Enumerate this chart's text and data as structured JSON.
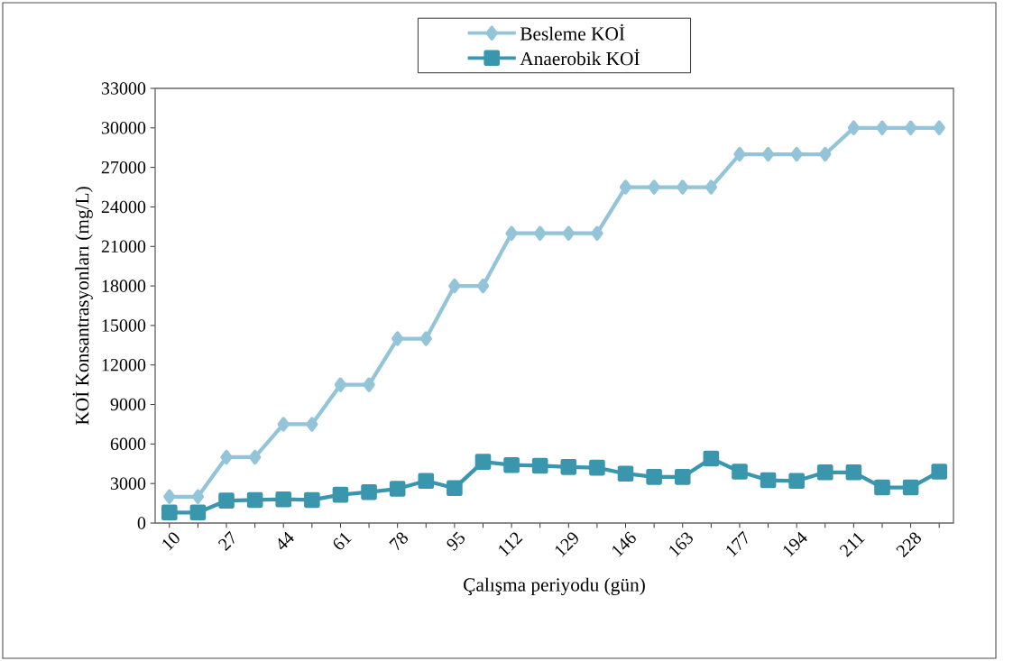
{
  "chart_data": {
    "type": "line",
    "xlabel": "Çalışma periyodu (gün)",
    "ylabel": "KOİ Konsantrasyonları (mg/L)",
    "categories": [
      "10",
      null,
      "27",
      null,
      "44",
      null,
      "61",
      null,
      "78",
      null,
      "95",
      null,
      "112",
      null,
      "129",
      null,
      "146",
      null,
      "163",
      null,
      "177",
      null,
      "194",
      null,
      "211",
      null,
      "228",
      null
    ],
    "series": [
      {
        "name": "Besleme KOİ",
        "color": "#93c4d8",
        "marker": "diamond",
        "values": [
          2000,
          2000,
          5000,
          5000,
          7500,
          7500,
          10500,
          10500,
          14000,
          14000,
          18000,
          18000,
          22000,
          22000,
          22000,
          22000,
          25500,
          25500,
          25500,
          25500,
          28000,
          28000,
          28000,
          28000,
          30000,
          30000,
          30000,
          30000
        ]
      },
      {
        "name": "Anaerobik KOİ",
        "color": "#3a96ad",
        "marker": "square",
        "values": [
          800,
          800,
          1700,
          1750,
          1800,
          1750,
          2150,
          2350,
          2600,
          3200,
          2650,
          4650,
          4400,
          4350,
          4250,
          4200,
          3750,
          3500,
          3500,
          4900,
          3900,
          3250,
          3200,
          3850,
          3850,
          2700,
          2700,
          3900
        ]
      }
    ],
    "ylim": [
      0,
      33000
    ],
    "yticks": [
      0,
      3000,
      6000,
      9000,
      12000,
      15000,
      18000,
      21000,
      24000,
      27000,
      30000,
      33000
    ],
    "legend": "top",
    "grid": false,
    "line_style": "solid"
  }
}
